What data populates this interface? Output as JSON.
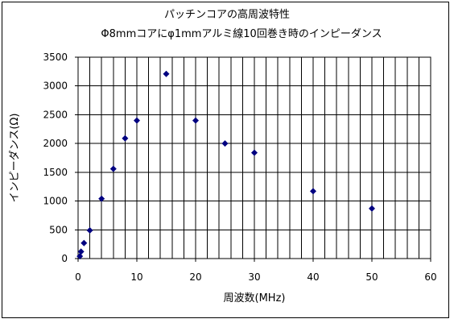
{
  "chart_data": {
    "type": "scatter",
    "title": "パッチンコアの高周波特性",
    "subtitle": "Φ8mmコアにφ1mmアルミ線10回巻き時のインピーダンス",
    "xlabel": "周波数(MHz)",
    "ylabel": "インピーダンス(Ω)",
    "xlim": [
      0,
      60
    ],
    "ylim": [
      0,
      3500
    ],
    "x_major_ticks": [
      0,
      10,
      20,
      30,
      40,
      50,
      60
    ],
    "x_tick_labels": [
      "0",
      "10",
      "20",
      "30",
      "40",
      "50",
      "60"
    ],
    "x_minor_step": 2,
    "y_major_ticks": [
      0,
      500,
      1000,
      1500,
      2000,
      2500,
      3000,
      3500
    ],
    "y_tick_labels": [
      "0",
      "500",
      "1000",
      "1500",
      "2000",
      "2500",
      "3000",
      "3500"
    ],
    "grid": true,
    "legend": "none",
    "marker": "diamond",
    "marker_color": "#000080",
    "points": [
      {
        "x": 0.3,
        "y": 40
      },
      {
        "x": 0.5,
        "y": 120
      },
      {
        "x": 1,
        "y": 270
      },
      {
        "x": 2,
        "y": 490
      },
      {
        "x": 4,
        "y": 1040
      },
      {
        "x": 6,
        "y": 1560
      },
      {
        "x": 8,
        "y": 2090
      },
      {
        "x": 10,
        "y": 2400
      },
      {
        "x": 15,
        "y": 3210
      },
      {
        "x": 20,
        "y": 2400
      },
      {
        "x": 25,
        "y": 2000
      },
      {
        "x": 30,
        "y": 1840
      },
      {
        "x": 40,
        "y": 1170
      },
      {
        "x": 50,
        "y": 870
      }
    ]
  }
}
